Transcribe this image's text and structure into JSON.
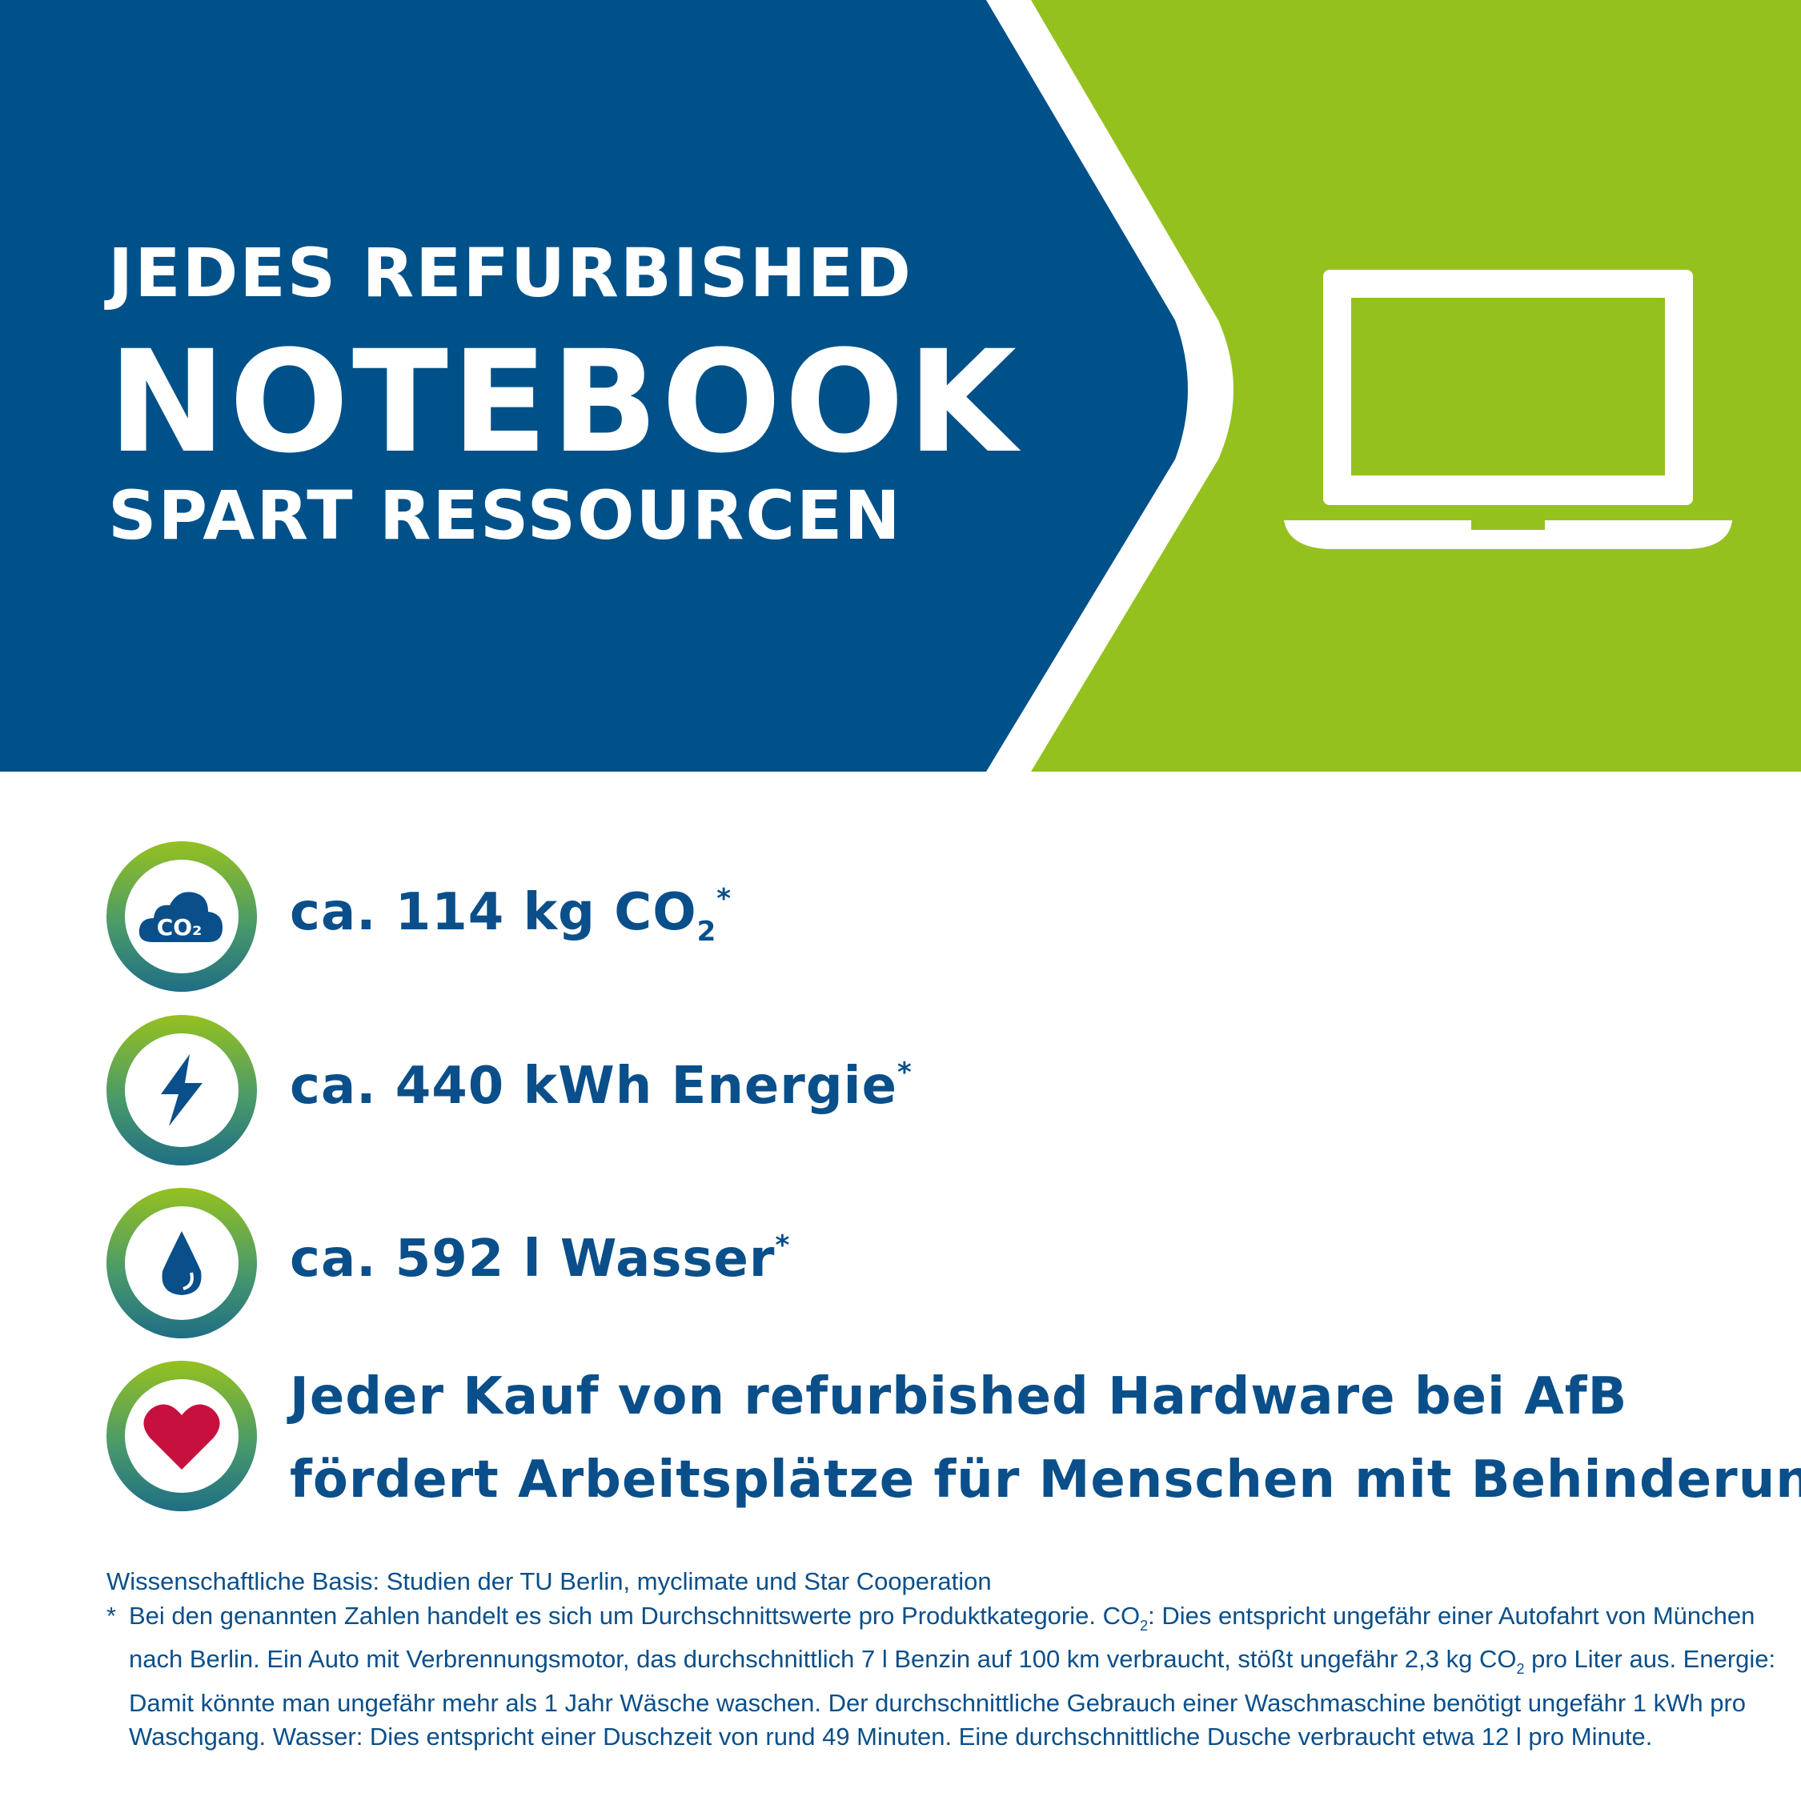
{
  "colors": {
    "blue": "#005189",
    "green": "#95c11f",
    "heart": "#c8103e"
  },
  "headline": {
    "line1": "JEDES REFURBISHED",
    "line2": "NOTEBOOK",
    "line3": "SPART RESSOURCEN"
  },
  "hero_icon": "laptop-icon",
  "stats": [
    {
      "icon": "co2-cloud-icon",
      "icon_text": "CO₂",
      "text": "ca. 114 kg CO",
      "sub": "2",
      "mark": "*"
    },
    {
      "icon": "lightning-icon",
      "text": "ca. 440 kWh Energie",
      "mark": "*"
    },
    {
      "icon": "water-drop-icon",
      "text": "ca. 592 l Wasser",
      "mark": "*"
    }
  ],
  "mission": {
    "icon": "heart-icon",
    "line1": "Jeder Kauf von refurbished Hardware bei AfB",
    "line2": "fördert Arbeitsplätze für Menschen mit Behinderung."
  },
  "footnote": {
    "basis": "Wissenschaftliche Basis: Studien der TU Berlin, myclimate und Star Cooperation",
    "star": "*",
    "p1": "Bei den genannten Zahlen handelt es sich um Durchschnittswerte pro Produktkategorie. CO",
    "p2": ": Dies entspricht ungefähr einer Autofahrt von München nach Berlin. Ein Auto mit Verbrennungsmotor, das durchschnittlich 7 l Benzin auf 100 km verbraucht, stößt ungefähr 2,3 kg CO",
    "p3": " pro Liter aus. Energie: Damit könnte man ungefähr mehr als 1 Jahr Wäsche waschen. Der durchschnittliche Gebrauch einer Waschmaschine benötigt ungefähr 1 kWh pro Waschgang. Wasser: Dies entspricht einer Duschzeit von rund 49 Minuten. Eine durchschnittliche Dusche verbraucht etwa 12 l pro Minute.",
    "sub": "2"
  }
}
